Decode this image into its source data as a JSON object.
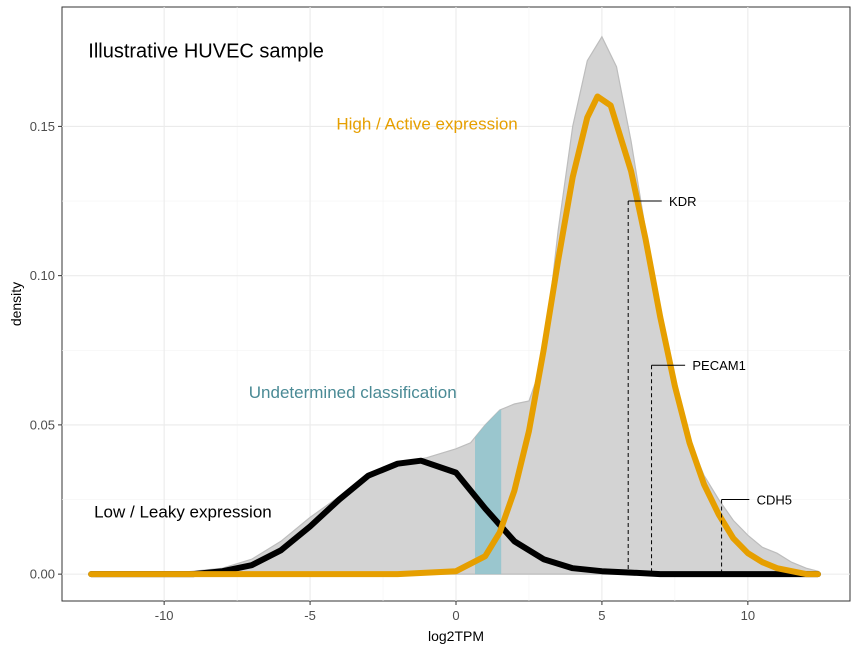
{
  "chart_data": {
    "type": "area",
    "xlabel": "log2TPM",
    "ylabel": "density",
    "xlim": [
      -13.5,
      13.5
    ],
    "ylim": [
      -0.009,
      0.19
    ],
    "x_ticks": [
      -10,
      -5,
      0,
      5,
      10
    ],
    "x_tick_labels": [
      "-10",
      "-5",
      "0",
      "5",
      "10"
    ],
    "y_ticks": [
      0.0,
      0.05,
      0.1,
      0.15
    ],
    "y_tick_labels": [
      "0.00",
      "0.05",
      "0.10",
      "0.15"
    ],
    "grid": true,
    "legend": "none",
    "colors": {
      "total_fill": "#d3d3d3",
      "total_outline": "#bdbdbd",
      "high_line": "#e69f00",
      "low_line": "#000000",
      "undetermined_band": "#8fc3cc",
      "undetermined_text": "#4a8a95"
    },
    "total_density": {
      "x": [
        -12.5,
        -10,
        -9,
        -8,
        -7,
        -6,
        -5,
        -4,
        -3,
        -2,
        -1,
        0,
        0.5,
        1,
        1.5,
        2,
        2.5,
        3,
        3.5,
        4,
        4.5,
        5,
        5.5,
        6,
        6.5,
        7,
        7.5,
        8,
        8.5,
        9,
        9.5,
        10,
        10.5,
        11,
        11.5,
        12,
        12.4
      ],
      "y": [
        0.0,
        0.0,
        0.001,
        0.002,
        0.005,
        0.011,
        0.019,
        0.026,
        0.033,
        0.037,
        0.039,
        0.042,
        0.044,
        0.05,
        0.055,
        0.057,
        0.058,
        0.072,
        0.115,
        0.15,
        0.172,
        0.18,
        0.17,
        0.145,
        0.115,
        0.085,
        0.062,
        0.045,
        0.033,
        0.025,
        0.018,
        0.013,
        0.009,
        0.007,
        0.004,
        0.002,
        0.001
      ]
    },
    "series": [
      {
        "name": "",
        "role": "high",
        "x": [
          -12.5,
          -5,
          -2,
          0,
          1,
          1.5,
          2,
          2.5,
          3,
          3.5,
          4,
          4.5,
          4.85,
          5.3,
          6,
          6.5,
          7,
          7.5,
          8,
          8.5,
          9,
          9.5,
          10,
          10.5,
          11,
          12,
          12.4
        ],
        "y": [
          0.0,
          0.0,
          0.0,
          0.001,
          0.006,
          0.014,
          0.028,
          0.048,
          0.075,
          0.105,
          0.133,
          0.153,
          0.16,
          0.157,
          0.135,
          0.112,
          0.086,
          0.063,
          0.044,
          0.03,
          0.02,
          0.012,
          0.007,
          0.004,
          0.002,
          0.0,
          0.0
        ]
      },
      {
        "name": "",
        "role": "low",
        "x": [
          -12.5,
          -9,
          -8,
          -7,
          -6,
          -5,
          -4,
          -3,
          -2,
          -1.2,
          0,
          1,
          2,
          3,
          4,
          5,
          6,
          7,
          8,
          12.4
        ],
        "y": [
          0.0,
          0.0,
          0.001,
          0.003,
          0.008,
          0.016,
          0.025,
          0.033,
          0.037,
          0.038,
          0.034,
          0.022,
          0.011,
          0.005,
          0.002,
          0.001,
          0.0005,
          0.0,
          0.0,
          0.0
        ]
      }
    ],
    "undetermined_band": {
      "x_start": 0.65,
      "x_end": 1.55
    },
    "gene_markers": [
      {
        "gene": "KDR",
        "x": 5.9,
        "y": 0.125,
        "label_x": 7.3
      },
      {
        "gene": "PECAM1",
        "x": 6.7,
        "y": 0.07,
        "label_x": 8.1
      },
      {
        "gene": "CDH5",
        "x": 9.1,
        "y": 0.025,
        "label_x": 10.3
      }
    ],
    "annotations": [
      {
        "text": "Illustrative HUVEC sample",
        "x": -12.6,
        "y": 0.173,
        "role": "title"
      },
      {
        "text": "High / Active expression",
        "x": -4.1,
        "y": 0.149,
        "role": "high"
      },
      {
        "text": "Undetermined classification",
        "x": -7.1,
        "y": 0.059,
        "role": "undetermined"
      },
      {
        "text": "Low / Leaky expression",
        "x": -12.4,
        "y": 0.019,
        "role": "low"
      }
    ]
  }
}
